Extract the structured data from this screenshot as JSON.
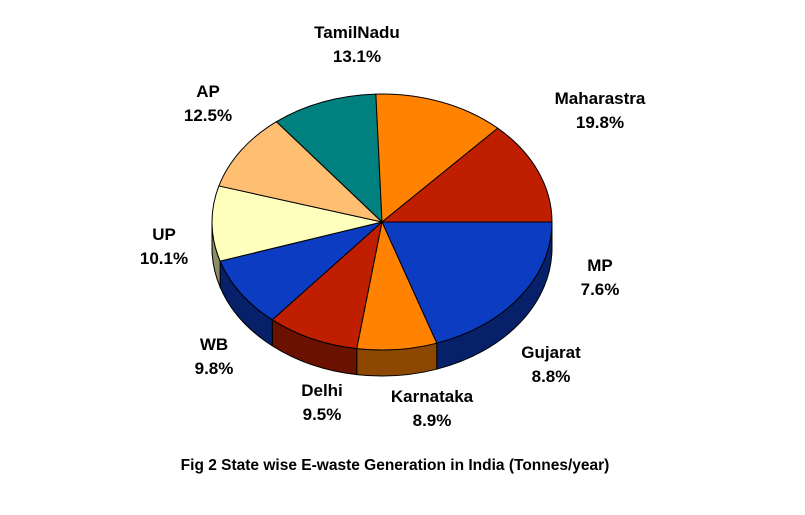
{
  "chart_data": {
    "type": "pie",
    "style": "3d-exploded-center",
    "title": "Fig 2 State wise E-waste Generation in India (Tonnes/year)",
    "slices": [
      {
        "label": "Maharastra",
        "value": 19.8,
        "display": "19.8%",
        "color": "#0b3cc1"
      },
      {
        "label": "MP",
        "value": 7.6,
        "display": "7.6%",
        "color": "#ff8200"
      },
      {
        "label": "Gujarat",
        "value": 8.8,
        "display": "8.8%",
        "color": "#c01e00"
      },
      {
        "label": "Karnataka",
        "value": 8.9,
        "display": "8.9%",
        "color": "#0b3cc1"
      },
      {
        "label": "Delhi",
        "value": 9.5,
        "display": "9.5%",
        "color": "#ffffbd"
      },
      {
        "label": "WB",
        "value": 9.8,
        "display": "9.8%",
        "color": "#ffbf73"
      },
      {
        "label": "UP",
        "value": 10.1,
        "display": "10.1%",
        "color": "#00807f"
      },
      {
        "label": "AP",
        "value": 12.5,
        "display": "12.5%",
        "color": "#ff8200"
      },
      {
        "label": "TamilNadu",
        "value": 13.1,
        "display": "13.1%",
        "color": "#c01e00"
      }
    ],
    "legend": "none",
    "labels_position": "outside"
  }
}
